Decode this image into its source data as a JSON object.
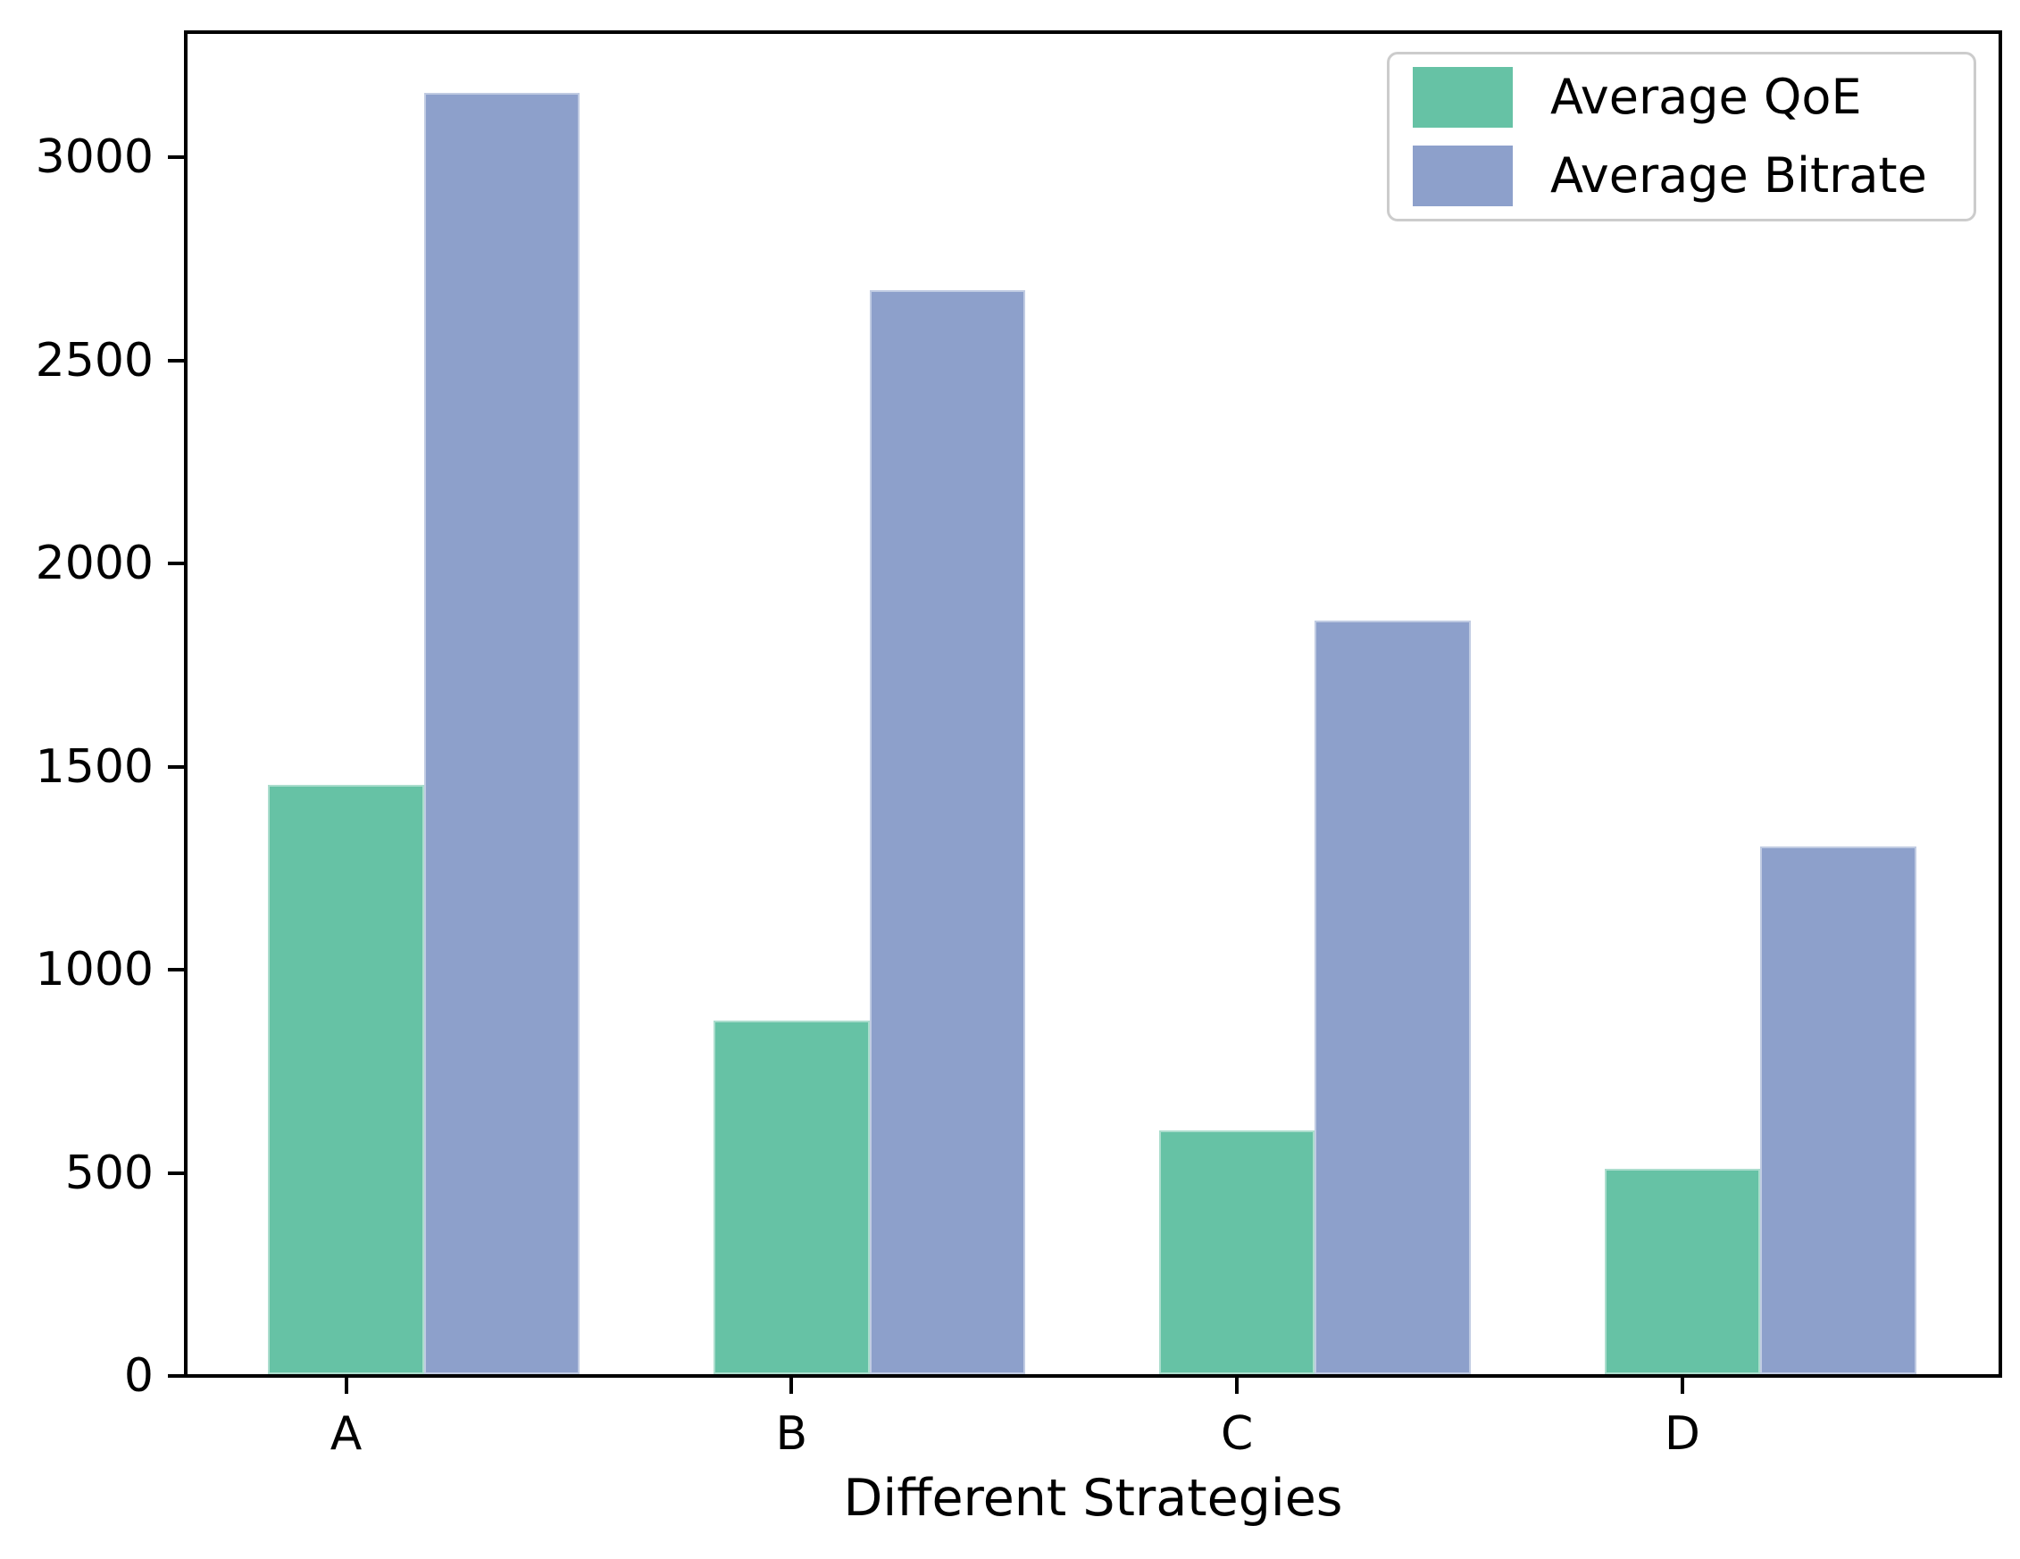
{
  "chart_data": {
    "type": "bar",
    "categories": [
      "A",
      "B",
      "C",
      "D"
    ],
    "series": [
      {
        "name": "Average QoE",
        "color": "#66c2a5",
        "values": [
          1450,
          870,
          600,
          505
        ]
      },
      {
        "name": "Average Bitrate",
        "color": "#8da0cb",
        "values": [
          3155,
          2670,
          1855,
          1300
        ]
      }
    ],
    "title": "",
    "xlabel": "Different Strategies",
    "ylabel": "",
    "ylim": [
      0,
      3300
    ],
    "yticks": [
      0,
      500,
      1000,
      1500,
      2000,
      2500,
      3000
    ],
    "grid": false,
    "legend_position": "upper right",
    "bar_width_units": 0.35,
    "xlim_units": [
      -0.36,
      3.71
    ]
  },
  "colors": {
    "spine": "#000000",
    "text": "#000000",
    "legend_border": "#cccccc",
    "background": "#ffffff"
  }
}
